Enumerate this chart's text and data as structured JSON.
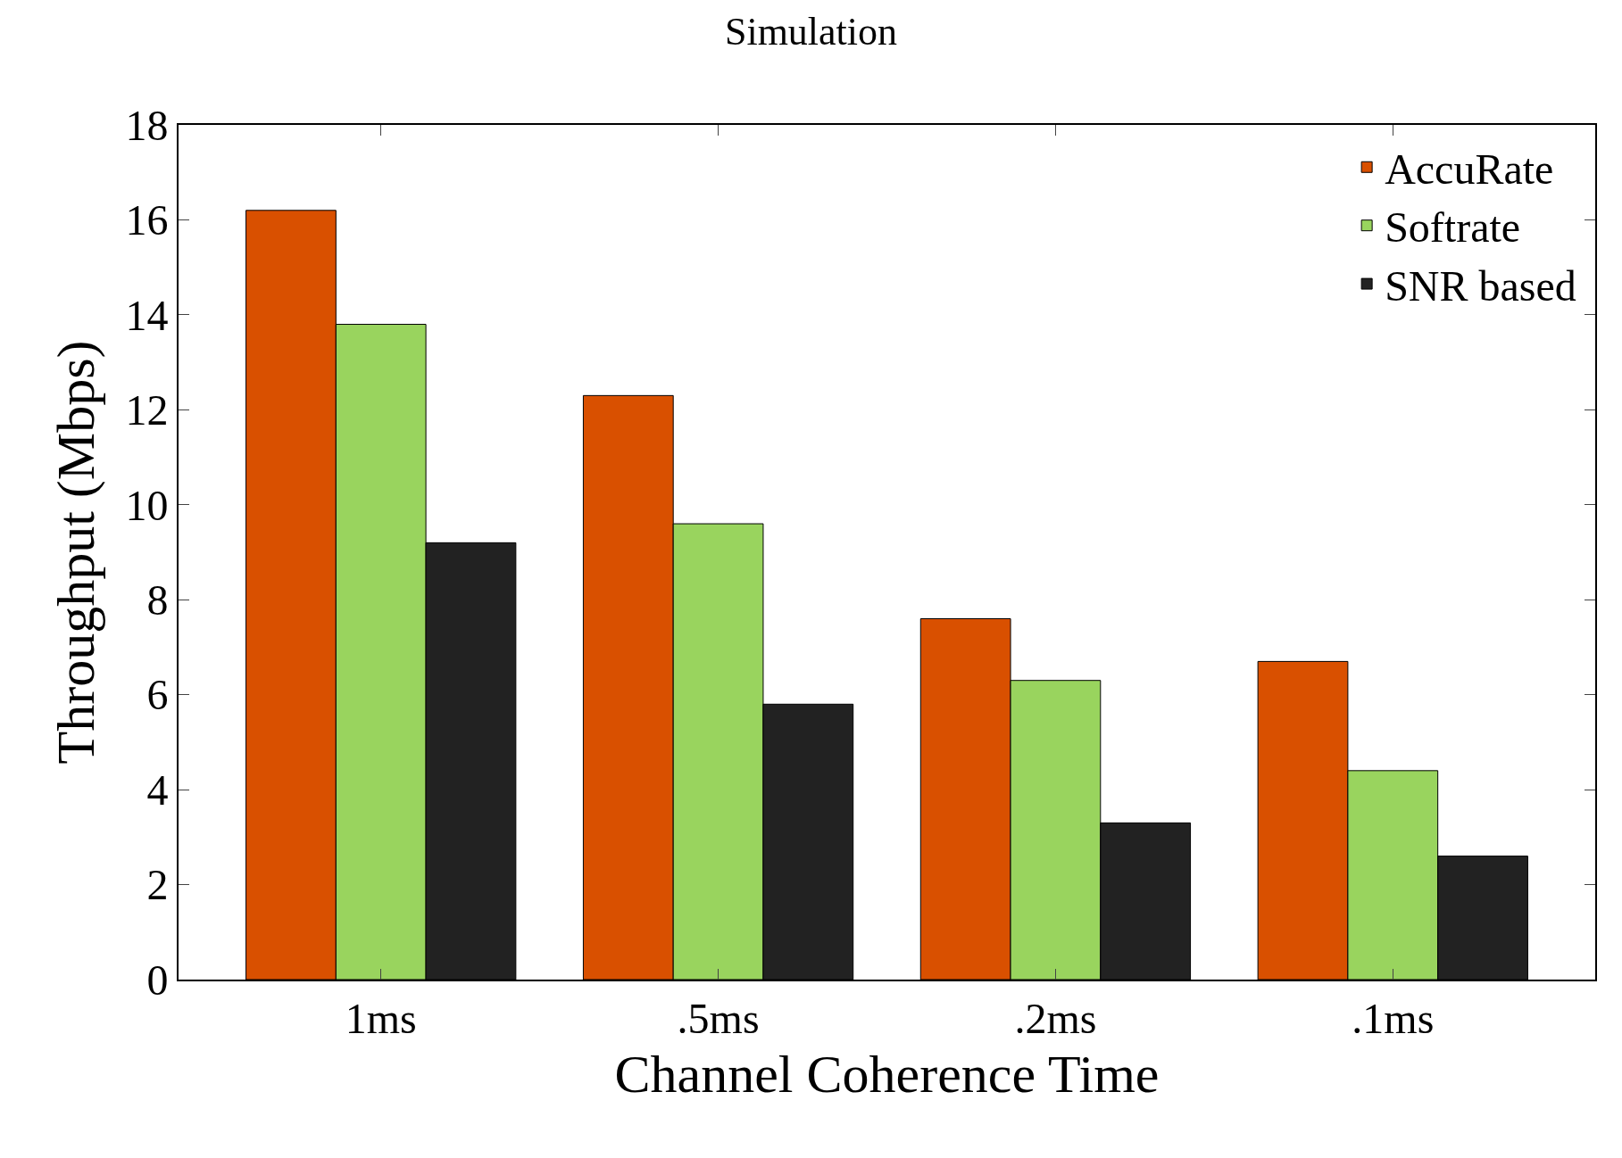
{
  "chart_data": {
    "type": "bar",
    "title": "Simulation",
    "xlabel": "Channel Coherence Time",
    "ylabel": "Throughput (Mbps)",
    "categories": [
      "1ms",
      ".5ms",
      ".2ms",
      ".1ms"
    ],
    "series": [
      {
        "name": "AccuRate",
        "color": "#d95000",
        "values": [
          16.2,
          12.3,
          7.6,
          6.7
        ]
      },
      {
        "name": "Softrate",
        "color": "#99d45e",
        "values": [
          13.8,
          9.6,
          6.3,
          4.4
        ]
      },
      {
        "name": "SNR based",
        "color": "#222222",
        "values": [
          9.2,
          5.8,
          3.3,
          2.6
        ]
      }
    ],
    "ylim": [
      0,
      18
    ],
    "yticks": [
      0,
      2,
      4,
      6,
      8,
      10,
      12,
      14,
      16,
      18
    ],
    "legend": "top right"
  }
}
